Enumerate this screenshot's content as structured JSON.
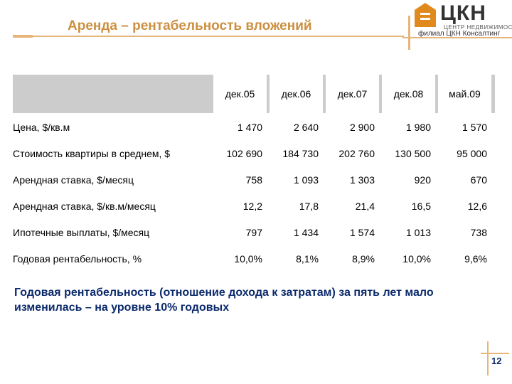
{
  "title": "Аренда – рентабельность вложений",
  "logo": {
    "name": "ЦКН",
    "subtitle_top": "ЦЕНТР НЕДВИЖИМОСТИ",
    "subtitle_bottom": "филиал ЦКН Консалтинг"
  },
  "table": {
    "columns": [
      "дек.05",
      "дек.06",
      "дек.07",
      "дек.08",
      "май.09"
    ],
    "rows": [
      {
        "label": "Цена, $/кв.м",
        "values": [
          "1 470",
          "2 640",
          "2 900",
          "1 980",
          "1 570"
        ]
      },
      {
        "label": "Стоимость квартиры в среднем, $",
        "values": [
          "102 690",
          "184 730",
          "202 760",
          "130 500",
          "95 000"
        ]
      },
      {
        "label": "Арендная ставка, $/месяц",
        "values": [
          "758",
          "1 093",
          "1 303",
          "920",
          "670"
        ]
      },
      {
        "label": "Арендная ставка, $/кв.м/месяц",
        "values": [
          "12,2",
          "17,8",
          "21,4",
          "16,5",
          "12,6"
        ]
      },
      {
        "label": "Ипотечные выплаты, $/месяц",
        "values": [
          "797",
          "1 434",
          "1 574",
          "1 013",
          "738"
        ]
      },
      {
        "label": "Годовая рентабельность, %",
        "values": [
          "10,0%",
          "8,1%",
          "8,9%",
          "10,0%",
          "9,6%"
        ]
      }
    ]
  },
  "summary": "Годовая рентабельность (отношение дохода к затратам) за пять лет мало изменилась – на уровне 10% годовых",
  "page_number": "12",
  "colors": {
    "accent": "#cc8f3f",
    "text_blue": "#0b2a6b",
    "header_gray": "#cccccc"
  }
}
